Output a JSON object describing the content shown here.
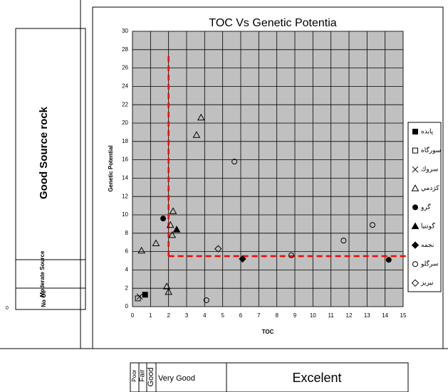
{
  "chart_data": {
    "type": "scatter",
    "title": "TOC Vs Genetic Potentia",
    "x_label": "TOC",
    "y_label": "Genetic Potential",
    "xlim": [
      0,
      15
    ],
    "ylim": [
      0,
      30
    ],
    "xticks": [
      0,
      1,
      2,
      3,
      4,
      5,
      6,
      7,
      8,
      9,
      10,
      11,
      12,
      13,
      14,
      15
    ],
    "yticks": [
      0,
      2,
      4,
      6,
      8,
      10,
      12,
      14,
      16,
      18,
      20,
      22,
      24,
      26,
      28,
      30
    ],
    "grid": true,
    "plot_background": "#c0c0c0",
    "legend": "right",
    "reference_lines": {
      "x": 2,
      "y": 5.5,
      "color": "#ff0000"
    },
    "series": [
      {
        "name": "پابده",
        "marker": "square",
        "filled": true,
        "color": "#000000",
        "x": [
          0.7
        ],
        "values": [
          1.3
        ]
      },
      {
        "name": "سورگاه",
        "marker": "square",
        "filled": false,
        "color": "#000000",
        "x": [
          0.3
        ],
        "values": [
          0.9
        ]
      },
      {
        "name": "سروك",
        "marker": "x",
        "filled": false,
        "color": "#000000",
        "x": [
          0.4
        ],
        "values": [
          1.1
        ]
      },
      {
        "name": "كژدمي",
        "marker": "triangle",
        "filled": false,
        "color": "#000000",
        "x": [
          0.5,
          1.3,
          1.9,
          2.0,
          2.1,
          2.2,
          2.25,
          3.55,
          3.8
        ],
        "values": [
          6.1,
          6.9,
          2.2,
          1.6,
          8.9,
          7.8,
          10.4,
          18.7,
          20.6
        ]
      },
      {
        "name": "گرو",
        "marker": "circle",
        "filled": true,
        "color": "#000000",
        "x": [
          1.7,
          14.2
        ],
        "values": [
          9.6,
          5.1
        ]
      },
      {
        "name": "گوتنيا",
        "marker": "triangle",
        "filled": true,
        "color": "#000000",
        "x": [
          2.45
        ],
        "values": [
          8.4
        ]
      },
      {
        "name": "نجمه",
        "marker": "diamond",
        "filled": true,
        "color": "#000000",
        "x": [
          6.1
        ],
        "values": [
          5.2
        ]
      },
      {
        "name": "سرگلو",
        "marker": "circle",
        "filled": false,
        "color": "#000000",
        "x": [
          4.1,
          5.65,
          8.8,
          11.7,
          13.3
        ],
        "values": [
          0.7,
          15.8,
          5.6,
          7.2,
          8.9
        ]
      },
      {
        "name": "نيريز",
        "marker": "diamond",
        "filled": false,
        "color": "#000000",
        "x": [
          4.75
        ],
        "values": [
          6.3
        ]
      }
    ]
  },
  "side_scale": {
    "good": "Good Source rock",
    "moderate": "Moderate Source",
    "no_oil": "No Oil",
    "zero": "0"
  },
  "bottom_scale": [
    "Poor",
    "Fair",
    "Good",
    "Very Good",
    "Excelent"
  ]
}
